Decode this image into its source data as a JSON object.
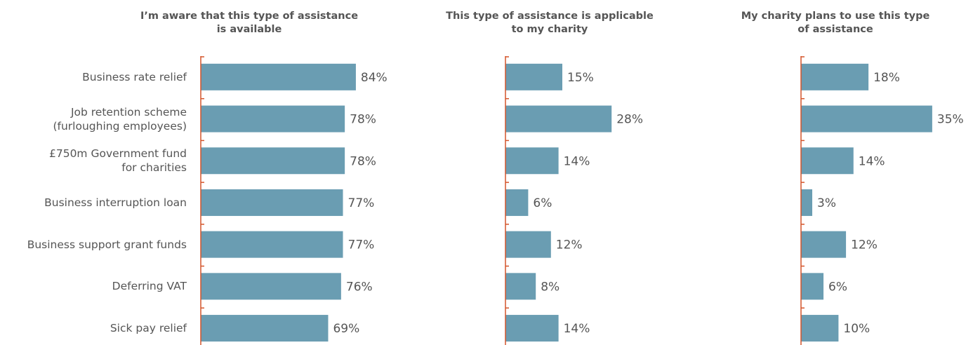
{
  "chart_data": [
    {
      "type": "barh",
      "title": "I’m aware that this type of assistance\nis available",
      "categories": [
        "Business rate relief",
        "Job retention scheme\n(furloughing employees)",
        "£750m Government fund\nfor charities",
        "Business interruption loan",
        "Business support grant funds",
        "Deferring VAT",
        "Sick pay relief"
      ],
      "values": [
        84,
        78,
        78,
        77,
        77,
        76,
        69
      ],
      "value_labels": [
        "84%",
        "78%",
        "78%",
        "77%",
        "77%",
        "76%",
        "69%"
      ],
      "color": "#6a9db2",
      "xlim": [
        0,
        100
      ]
    },
    {
      "type": "barh",
      "title": "This type of assistance is applicable\nto my charity",
      "values": [
        15,
        28,
        14,
        6,
        12,
        8,
        14
      ],
      "value_labels": [
        "15%",
        "28%",
        "14%",
        "6%",
        "12%",
        "8%",
        "14%"
      ],
      "color": "#6a9db2",
      "xlim": [
        0,
        50
      ]
    },
    {
      "type": "barh",
      "title": "My charity plans to use this type\nof assistance",
      "values": [
        18,
        35,
        14,
        3,
        12,
        6,
        10
      ],
      "value_labels": [
        "18%",
        "35%",
        "14%",
        "3%",
        "12%",
        "6%",
        "10%"
      ],
      "color": "#6a9db2",
      "xlim": [
        0,
        50
      ]
    }
  ]
}
